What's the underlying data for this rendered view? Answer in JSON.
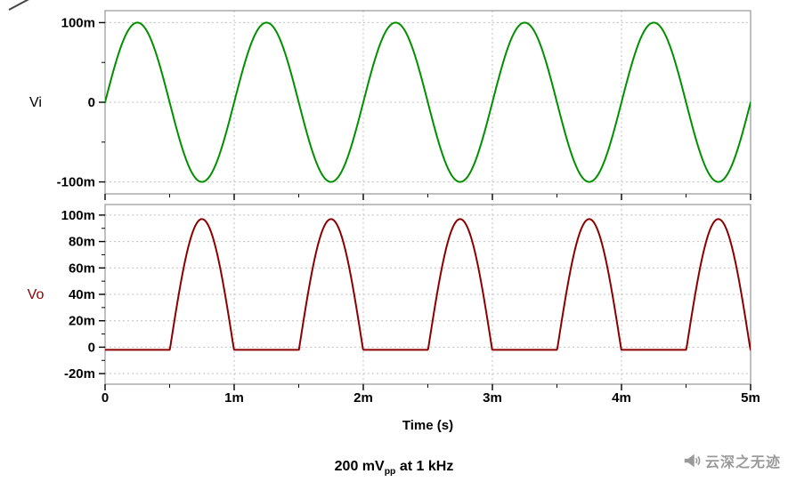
{
  "chart_data": {
    "type": "line",
    "title": "",
    "x_axis": {
      "title": "Time (s)",
      "range_s": [
        0,
        0.005
      ],
      "major_ticks": [
        {
          "v": 0,
          "label": "0"
        },
        {
          "v": 0.001,
          "label": "1m"
        },
        {
          "v": 0.002,
          "label": "2m"
        },
        {
          "v": 0.003,
          "label": "3m"
        },
        {
          "v": 0.004,
          "label": "4m"
        },
        {
          "v": 0.005,
          "label": "5m"
        }
      ],
      "minor_tick_step_s": 0.0005
    },
    "panels": [
      {
        "name": "Vi",
        "label_color": "#000000",
        "color": "#009000",
        "description": "1 kHz sine, 100 mV amplitude (200 mVpp)",
        "y_range_V": [
          -0.115,
          0.115
        ],
        "y_ticks": [
          {
            "v": 0.1,
            "label": "100m"
          },
          {
            "v": 0,
            "label": "0"
          },
          {
            "v": -0.1,
            "label": "-100m"
          }
        ],
        "y_minor_step_V": 0.05,
        "signal": {
          "kind": "sine",
          "amplitude_V": 0.1,
          "frequency_Hz": 1000
        }
      },
      {
        "name": "Vo",
        "label_color": "#8B0000",
        "color": "#8B0000",
        "description": "half-wave rectified output: humps of ~97 mV peak at 0.75m, 1.75m, 2.75m, 3.75m, 4.75m s; flat near 0 elsewhere",
        "y_range_V": [
          -0.028,
          0.108
        ],
        "y_ticks": [
          {
            "v": 0.1,
            "label": "100m"
          },
          {
            "v": 0.08,
            "label": "80m"
          },
          {
            "v": 0.06,
            "label": "60m"
          },
          {
            "v": 0.04,
            "label": "40m"
          },
          {
            "v": 0.02,
            "label": "20m"
          },
          {
            "v": 0,
            "label": "0"
          },
          {
            "v": -0.02,
            "label": "-20m"
          }
        ],
        "y_minor_step_V": 0.01,
        "signal": {
          "kind": "rectified",
          "input_amplitude_V": 0.1,
          "frequency_Hz": 1000,
          "peak_V": 0.097,
          "baseline_V": -0.002
        }
      }
    ],
    "grid": true,
    "legend_position": "left-axis-labels"
  },
  "caption": {
    "prefix": "200 mV",
    "subscript": "pp",
    "suffix": " at 1 kHz"
  },
  "watermark": {
    "icon": "megaphone-icon",
    "text": "云深之无迹"
  },
  "colors": {
    "vi_trace": "#009000",
    "vo_trace": "#8B0000",
    "grid": "#c0c0c0",
    "frame": "#808080",
    "text": "#000000",
    "watermark": "#9a9a9a"
  }
}
